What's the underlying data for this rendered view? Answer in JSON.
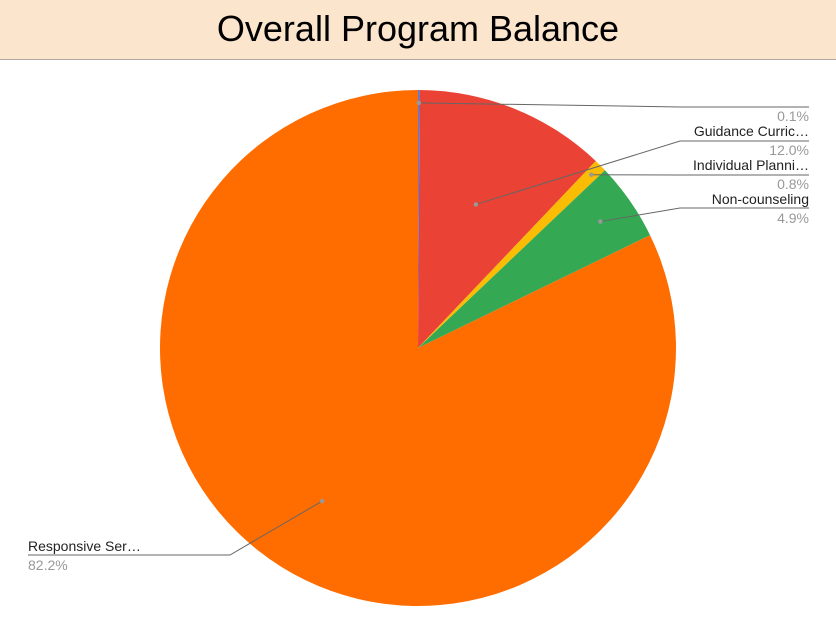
{
  "chart_data": {
    "type": "pie",
    "title": "Overall Program Balance",
    "start_angle_deg": 0,
    "slices": [
      {
        "label": "",
        "value": 0.1,
        "value_label": "0.1%",
        "color": "#4285f4"
      },
      {
        "label": "Guidance Curric…",
        "value": 12.0,
        "value_label": "12.0%",
        "color": "#ea4335"
      },
      {
        "label": "Individual Planni…",
        "value": 0.8,
        "value_label": "0.8%",
        "color": "#fbbc04"
      },
      {
        "label": "Non-counseling",
        "value": 4.9,
        "value_label": "4.9%",
        "color": "#34a853"
      },
      {
        "label": "Responsive Ser…",
        "value": 82.2,
        "value_label": "82.2%",
        "color": "#ff6d01"
      }
    ]
  }
}
